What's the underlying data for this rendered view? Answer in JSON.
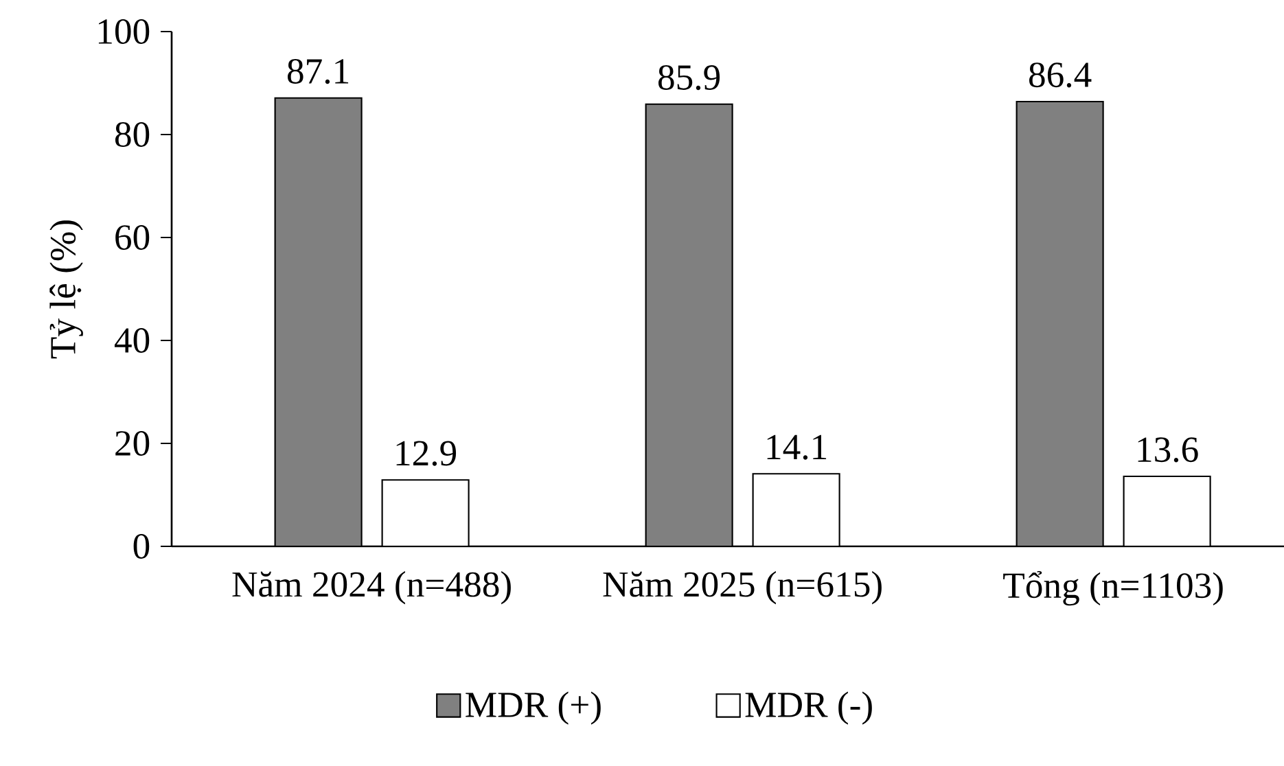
{
  "chart_data": {
    "type": "bar",
    "ylabel": "Tỷ lệ (%)",
    "categories": [
      "Năm 2024 (n=488)",
      "Năm 2025 (n=615)",
      "Tổng (n=1103)"
    ],
    "series": [
      {
        "name": "MDR (+)",
        "color": "#808080",
        "values": [
          87.1,
          85.9,
          86.4
        ]
      },
      {
        "name": "MDR (-)",
        "color": "#ffffff",
        "values": [
          12.9,
          14.1,
          13.6
        ]
      }
    ],
    "ylim": [
      0,
      100
    ],
    "yticks": [
      0,
      20,
      40,
      60,
      80,
      100
    ],
    "data_labels": true,
    "legend": "bottom",
    "grid": false
  }
}
